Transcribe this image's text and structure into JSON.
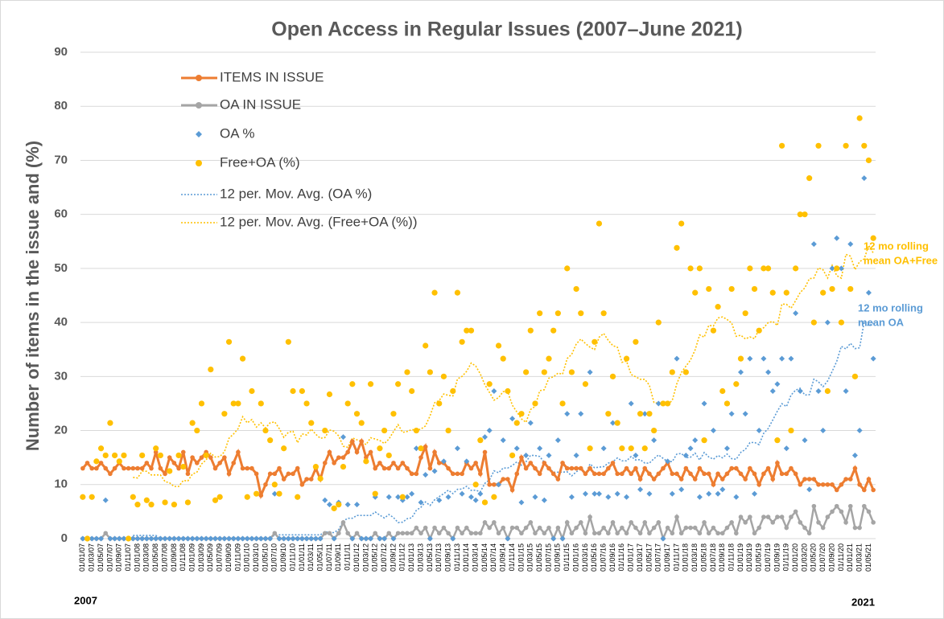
{
  "chart_data": {
    "type": "line",
    "title": "Open Access in Regular Issues  (2007–June 2021)",
    "y_label": "Number of items in the issue and  (%)",
    "start_label": "2007",
    "end_label": "2021",
    "annotations": [
      {
        "text": [
          "12 mo rolling",
          "mean OA+Free"
        ],
        "color": "#ffc000"
      },
      {
        "text": [
          "12 mo rolling",
          "mean OA"
        ],
        "color": "#5b9bd5"
      }
    ],
    "ylim": [
      0,
      90
    ],
    "yticks": [
      0,
      10,
      20,
      30,
      40,
      50,
      60,
      70,
      80,
      90
    ],
    "grid": true,
    "categories": [
      "01/01/07",
      null,
      "01/03/07",
      null,
      "01/05/07",
      null,
      "01/07/07",
      null,
      "01/09/07",
      null,
      "01/11/07",
      null,
      "01/01/08",
      null,
      "01/03/08",
      null,
      "01/05/08",
      null,
      "01/07/08",
      null,
      "01/09/08",
      null,
      "01/11/08",
      null,
      "01/01/09",
      null,
      "01/03/09",
      null,
      "01/05/09",
      null,
      "01/07/09",
      null,
      "01/09/09",
      null,
      "01/11/09",
      null,
      "01/01/10",
      null,
      "01/03/10",
      null,
      "01/05/10",
      null,
      "01/07/10",
      null,
      "01/09/10",
      null,
      "01/11/10",
      null,
      "01/01/11",
      null,
      "01/03/11",
      null,
      "01/05/11",
      null,
      "01/07/11",
      null,
      "01/09/11",
      null,
      "01/11/11",
      null,
      "01/01/12",
      null,
      "01/03/12",
      null,
      "01/05/12",
      null,
      "01/07/12",
      null,
      "01/09/12",
      null,
      "01/11/12",
      null,
      "01/01/13",
      null,
      "01/03/13",
      null,
      "01/05/13",
      null,
      "01/07/13",
      null,
      "01/09/13",
      null,
      "01/11/13",
      null,
      "01/01/14",
      null,
      "01/03/14",
      null,
      "01/05/14",
      null,
      "01/07/14",
      null,
      "01/09/14",
      null,
      "01/11/14",
      null,
      "01/01/15",
      null,
      "01/03/15",
      null,
      "01/05/15",
      null,
      "01/07/15",
      null,
      "01/09/15",
      null,
      "01/11/15",
      null,
      "01/01/16",
      null,
      "01/03/16",
      null,
      "01/05/16",
      null,
      "01/07/16",
      null,
      "01/09/16",
      null,
      "01/11/16",
      null,
      "01/01/17",
      null,
      "01/03/17",
      null,
      "01/05/17",
      null,
      "01/07/17",
      null,
      "01/09/17",
      null,
      "01/11/17",
      null,
      "01/01/18",
      null,
      "01/03/18",
      null,
      "01/05/18",
      null,
      "01/07/18",
      null,
      "01/09/18",
      null,
      "01/11/18",
      null,
      "01/01/19",
      null,
      "01/03/19",
      null,
      "01/05/19",
      null,
      "01/07/19",
      null,
      "01/09/19",
      null,
      "01/11/19",
      null,
      "01/01/20",
      null,
      "01/03/20",
      null,
      "01/05/20",
      null,
      "01/07/20",
      null,
      "01/09/20",
      null,
      "01/11/20",
      null,
      "01/01/21",
      null,
      "01/03/21",
      null,
      "01/05/21",
      null
    ],
    "series": [
      {
        "name": "ITEMS IN ISSUE",
        "color": "#ed7d31",
        "mode": "lines+markers",
        "marker": "circle",
        "values": [
          13,
          14,
          13,
          13,
          14,
          13,
          12,
          13,
          14,
          13,
          13,
          13,
          13,
          13,
          14,
          13,
          16,
          13,
          12,
          15,
          14,
          13,
          16,
          12,
          15,
          14,
          15,
          16,
          15,
          13,
          14,
          15,
          12,
          14,
          16,
          13,
          13,
          13,
          12,
          8,
          10,
          12,
          12,
          13,
          11,
          12,
          12,
          13,
          10,
          11,
          11,
          13,
          11,
          14,
          16,
          14,
          15,
          15,
          16,
          18,
          16,
          18,
          15,
          16,
          13,
          14,
          13,
          13,
          14,
          13,
          14,
          13,
          12,
          12,
          15,
          17,
          13,
          16,
          14,
          14,
          13,
          12,
          12,
          12,
          14,
          13,
          14,
          12,
          16,
          10,
          10,
          10,
          11,
          11,
          9,
          12,
          15,
          13,
          14,
          13,
          12,
          14,
          13,
          12,
          11,
          14,
          13,
          13,
          13,
          13,
          12,
          13,
          12,
          12,
          12,
          13,
          14,
          12,
          12,
          13,
          12,
          13,
          11,
          13,
          12,
          11,
          12,
          13,
          14,
          12,
          12,
          11,
          13,
          12,
          11,
          13,
          12,
          12,
          10,
          12,
          11,
          12,
          13,
          13,
          12,
          11,
          13,
          12,
          10,
          12,
          13,
          11,
          14,
          12,
          12,
          13,
          12,
          10,
          11,
          11,
          11,
          10,
          10,
          10,
          10,
          9,
          10,
          11,
          11,
          13,
          10,
          9,
          11,
          9
        ]
      },
      {
        "name": "OA IN ISSUE",
        "color": "#a5a5a5",
        "mode": "lines+markers",
        "marker": "circle",
        "values": [
          0,
          0,
          0,
          0,
          0,
          1,
          0,
          0,
          0,
          0,
          0,
          0,
          0,
          0,
          0,
          0,
          0,
          0,
          0,
          0,
          0,
          0,
          0,
          0,
          0,
          0,
          0,
          0,
          0,
          0,
          0,
          0,
          0,
          0,
          0,
          0,
          0,
          0,
          0,
          0,
          0,
          0,
          1,
          0,
          0,
          0,
          0,
          0,
          0,
          0,
          0,
          0,
          0,
          1,
          1,
          0,
          1,
          3,
          1,
          0,
          1,
          0,
          0,
          0,
          1,
          0,
          0,
          1,
          0,
          1,
          1,
          1,
          1,
          2,
          1,
          2,
          0,
          2,
          1,
          2,
          1,
          0,
          2,
          1,
          2,
          1,
          1,
          1,
          3,
          2,
          3,
          1,
          2,
          0,
          2,
          2,
          1,
          2,
          3,
          1,
          2,
          1,
          2,
          0,
          2,
          0,
          3,
          1,
          2,
          3,
          1,
          4,
          1,
          1,
          2,
          1,
          3,
          1,
          2,
          1,
          3,
          2,
          1,
          3,
          1,
          2,
          3,
          0,
          2,
          1,
          4,
          1,
          2,
          2,
          2,
          1,
          3,
          1,
          2,
          1,
          1,
          2,
          3,
          1,
          4,
          3,
          4,
          1,
          2,
          4,
          4,
          3,
          4,
          4,
          2,
          4,
          5,
          3,
          2,
          1,
          6,
          3,
          2,
          4,
          5,
          6,
          5,
          3,
          6,
          2,
          2,
          6,
          5,
          3
        ]
      },
      {
        "name": "OA %",
        "color": "#5b9bd5",
        "mode": "markers",
        "marker": "diamond",
        "values": [
          0,
          0,
          0,
          0,
          0,
          7.1,
          0,
          0,
          0,
          0,
          0,
          0,
          0,
          0,
          0,
          0,
          0,
          0,
          0,
          0,
          0,
          0,
          0,
          0,
          0,
          0,
          0,
          0,
          0,
          0,
          0,
          0,
          0,
          0,
          0,
          0,
          0,
          0,
          0,
          0,
          0,
          0,
          8.3,
          0,
          0,
          0,
          0,
          0,
          0,
          0,
          0,
          0,
          0,
          7.1,
          6.3,
          0,
          6.7,
          18.8,
          6.3,
          0,
          6.3,
          0,
          0,
          0,
          7.7,
          0,
          0,
          7.7,
          0,
          7.7,
          7.1,
          7.7,
          8.3,
          16.7,
          6.7,
          11.8,
          0,
          12.5,
          7.1,
          14.3,
          7.7,
          0,
          16.7,
          8.3,
          14.3,
          7.7,
          7.1,
          8.3,
          18.8,
          20,
          27.3,
          10,
          18.2,
          0,
          22.2,
          16.7,
          6.7,
          15.4,
          21.4,
          7.7,
          16.7,
          7.1,
          15.4,
          0,
          18.2,
          0,
          23.1,
          7.7,
          15.4,
          23.1,
          8.3,
          30.8,
          8.3,
          8.3,
          16.7,
          7.7,
          21.4,
          8.3,
          16.7,
          7.7,
          25,
          15.4,
          9.1,
          23.1,
          8.3,
          18.2,
          25,
          0,
          14.3,
          8.3,
          33.3,
          9.1,
          15.4,
          16.7,
          18.2,
          7.7,
          25,
          8.3,
          20,
          8.3,
          9.1,
          16.7,
          23.1,
          7.7,
          30.8,
          23.1,
          33.3,
          8.3,
          20,
          33.3,
          30.8,
          27.3,
          28.6,
          33.3,
          16.7,
          33.3,
          41.7,
          27.3,
          18.2,
          9.1,
          54.5,
          27.3,
          20,
          40,
          50,
          55.6,
          50,
          27.3,
          54.5,
          15.4,
          20,
          66.7,
          45.5,
          33.3
        ]
      },
      {
        "name": "Free+OA (%)",
        "color": "#ffc000",
        "mode": "markers",
        "marker": "circle",
        "values": [
          7.7,
          0,
          7.7,
          14.3,
          16.7,
          15.4,
          21.4,
          15.4,
          14.3,
          15.4,
          0,
          7.7,
          6.3,
          15.4,
          7.1,
          6.3,
          16.7,
          15.4,
          6.7,
          12.5,
          6.3,
          15.4,
          13.3,
          6.7,
          21.4,
          20,
          25,
          15.4,
          31.3,
          7.1,
          7.7,
          23.1,
          36.4,
          25,
          25,
          33.3,
          7.7,
          27.3,
          8.3,
          25,
          20,
          18.2,
          10,
          8.3,
          16.7,
          36.4,
          27.3,
          7.7,
          27.3,
          25,
          21.4,
          13.3,
          11.1,
          20,
          26.7,
          5.6,
          6.3,
          13.3,
          25,
          28.6,
          23.1,
          21.4,
          14.3,
          28.6,
          8.3,
          16.7,
          20,
          15.4,
          23.1,
          28.6,
          7.7,
          30.8,
          27.3,
          20,
          16.7,
          35.7,
          30.8,
          45.5,
          25,
          30,
          20,
          27.3,
          45.5,
          36.4,
          38.5,
          38.5,
          10,
          18.2,
          6.7,
          28.6,
          7.7,
          35.7,
          33.3,
          27.3,
          15.4,
          21.4,
          23.1,
          30.8,
          38.5,
          25,
          41.7,
          30.8,
          33.3,
          38.5,
          41.7,
          25,
          50,
          30.8,
          46.2,
          41.7,
          28.6,
          16.7,
          36.4,
          58.3,
          41.7,
          23.1,
          30,
          21.4,
          16.7,
          33.3,
          16.7,
          36.4,
          23.1,
          16.7,
          23.1,
          20,
          40,
          25,
          25,
          30.8,
          53.8,
          58.3,
          30.8,
          50,
          45.5,
          50,
          18.2,
          46.2,
          38.5,
          42.9,
          27.3,
          25,
          46.2,
          28.6,
          33.3,
          41.7,
          50,
          46.2,
          38.5,
          50,
          50,
          45.5,
          18.2,
          72.7,
          45.5,
          20,
          50,
          60,
          60,
          66.7,
          40,
          72.7,
          45.5,
          27.3,
          46.2,
          50,
          40,
          72.7,
          46.2,
          30,
          77.8,
          72.7,
          70,
          55.6
        ]
      }
    ],
    "trendlines": [
      {
        "name": "12 per. Mov. Avg. (OA %)",
        "color": "#5b9bd5",
        "period": 12,
        "series": 2
      },
      {
        "name": "12 per. Mov. Avg. (Free+OA (%))",
        "color": "#ffc000",
        "period": 12,
        "series": 3
      }
    ]
  }
}
